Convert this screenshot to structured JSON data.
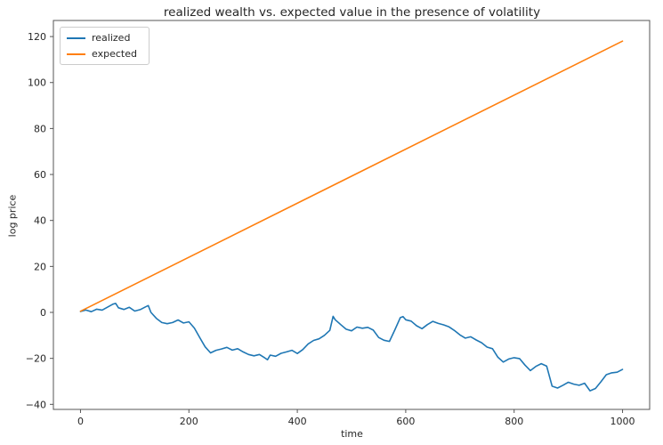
{
  "chart_data": {
    "type": "line",
    "title": "realized wealth vs. expected value in the presence of volatility",
    "xlabel": "time",
    "ylabel": "log price",
    "xlim": [
      -50,
      1050
    ],
    "ylim": [
      -42.2,
      127.0
    ],
    "xticks": [
      0,
      200,
      400,
      600,
      800,
      1000
    ],
    "yticks": [
      -40,
      -20,
      0,
      20,
      40,
      60,
      80,
      100,
      120
    ],
    "grid": false,
    "legend_position": "upper-left",
    "frame_color": "#555555",
    "text_color": "#262626",
    "series": [
      {
        "name": "realized",
        "color": "#1f77b4",
        "points": [
          [
            0,
            0.4
          ],
          [
            10,
            1.0
          ],
          [
            20,
            0.3
          ],
          [
            30,
            1.4
          ],
          [
            40,
            1.0
          ],
          [
            50,
            2.3
          ],
          [
            60,
            3.6
          ],
          [
            65,
            3.9
          ],
          [
            70,
            2.0
          ],
          [
            80,
            1.3
          ],
          [
            90,
            2.2
          ],
          [
            100,
            0.6
          ],
          [
            110,
            1.2
          ],
          [
            120,
            2.4
          ],
          [
            125,
            3.0
          ],
          [
            130,
            0.0
          ],
          [
            140,
            -2.6
          ],
          [
            150,
            -4.4
          ],
          [
            160,
            -4.9
          ],
          [
            170,
            -4.4
          ],
          [
            180,
            -3.3
          ],
          [
            190,
            -4.6
          ],
          [
            200,
            -4.1
          ],
          [
            210,
            -6.8
          ],
          [
            220,
            -11.0
          ],
          [
            230,
            -15.0
          ],
          [
            240,
            -17.6
          ],
          [
            250,
            -16.5
          ],
          [
            260,
            -15.9
          ],
          [
            270,
            -15.2
          ],
          [
            280,
            -16.4
          ],
          [
            290,
            -15.8
          ],
          [
            300,
            -17.2
          ],
          [
            310,
            -18.3
          ],
          [
            320,
            -18.9
          ],
          [
            330,
            -18.3
          ],
          [
            340,
            -19.8
          ],
          [
            345,
            -20.6
          ],
          [
            350,
            -18.6
          ],
          [
            360,
            -19.1
          ],
          [
            370,
            -17.8
          ],
          [
            380,
            -17.2
          ],
          [
            390,
            -16.5
          ],
          [
            400,
            -17.9
          ],
          [
            410,
            -16.2
          ],
          [
            420,
            -13.7
          ],
          [
            430,
            -12.2
          ],
          [
            440,
            -11.5
          ],
          [
            450,
            -10.0
          ],
          [
            460,
            -7.8
          ],
          [
            466,
            -1.7
          ],
          [
            470,
            -3.2
          ],
          [
            480,
            -5.3
          ],
          [
            490,
            -7.3
          ],
          [
            500,
            -8.0
          ],
          [
            510,
            -6.4
          ],
          [
            520,
            -6.9
          ],
          [
            530,
            -6.5
          ],
          [
            540,
            -7.7
          ],
          [
            550,
            -10.9
          ],
          [
            560,
            -12.1
          ],
          [
            570,
            -12.6
          ],
          [
            580,
            -7.6
          ],
          [
            590,
            -2.3
          ],
          [
            595,
            -1.8
          ],
          [
            600,
            -3.2
          ],
          [
            610,
            -3.8
          ],
          [
            620,
            -5.8
          ],
          [
            630,
            -7.1
          ],
          [
            640,
            -5.3
          ],
          [
            650,
            -3.9
          ],
          [
            660,
            -4.8
          ],
          [
            670,
            -5.4
          ],
          [
            680,
            -6.3
          ],
          [
            690,
            -7.9
          ],
          [
            700,
            -9.8
          ],
          [
            710,
            -11.2
          ],
          [
            720,
            -10.6
          ],
          [
            730,
            -12.0
          ],
          [
            740,
            -13.2
          ],
          [
            750,
            -15.1
          ],
          [
            760,
            -15.8
          ],
          [
            770,
            -19.5
          ],
          [
            780,
            -21.6
          ],
          [
            790,
            -20.3
          ],
          [
            800,
            -19.7
          ],
          [
            810,
            -20.1
          ],
          [
            820,
            -22.9
          ],
          [
            830,
            -25.3
          ],
          [
            840,
            -23.5
          ],
          [
            850,
            -22.3
          ],
          [
            860,
            -23.4
          ],
          [
            870,
            -32.1
          ],
          [
            880,
            -32.9
          ],
          [
            890,
            -31.7
          ],
          [
            900,
            -30.4
          ],
          [
            910,
            -31.2
          ],
          [
            920,
            -31.7
          ],
          [
            930,
            -30.8
          ],
          [
            940,
            -34.1
          ],
          [
            950,
            -33.1
          ],
          [
            960,
            -30.2
          ],
          [
            970,
            -27.1
          ],
          [
            980,
            -26.3
          ],
          [
            990,
            -26.0
          ],
          [
            1000,
            -24.8
          ]
        ]
      },
      {
        "name": "expected",
        "color": "#ff7f0e",
        "points": [
          [
            0,
            0.5
          ],
          [
            1000,
            118.0
          ]
        ]
      }
    ]
  }
}
